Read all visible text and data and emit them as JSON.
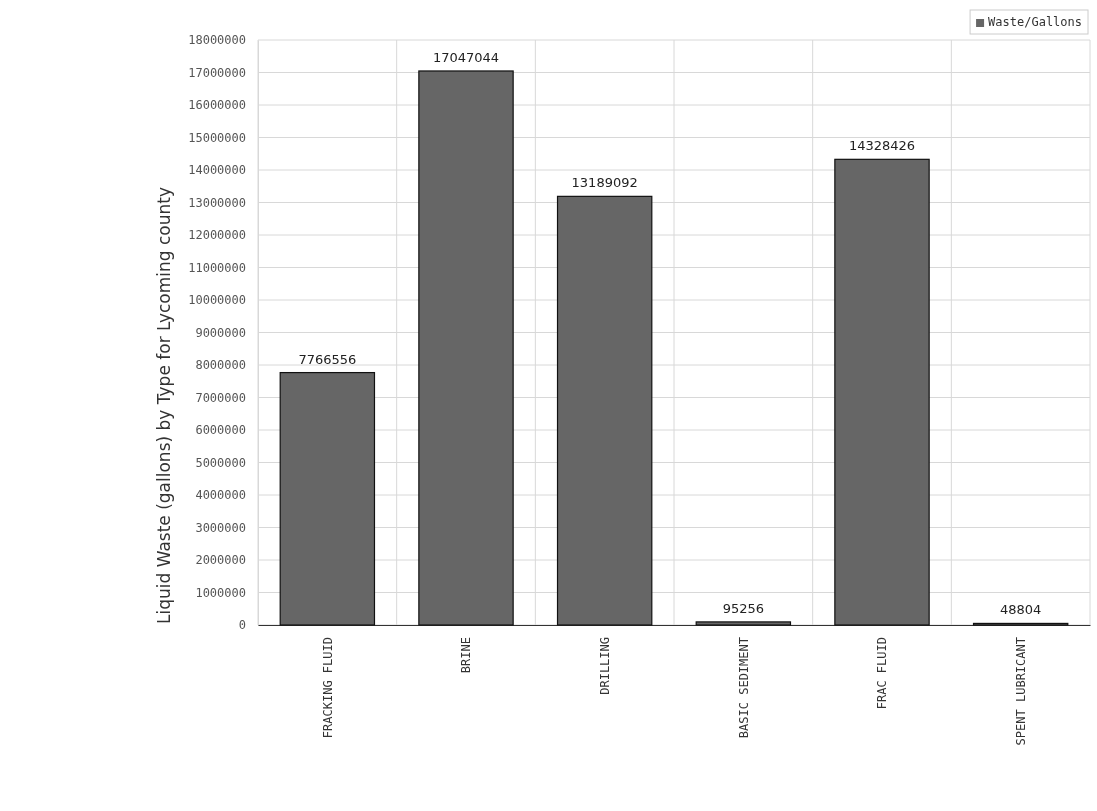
{
  "chart_data": {
    "type": "bar",
    "ylabel": "Liquid Waste (gallons) by Type for Lycoming county",
    "categories": [
      "FRACKING FLUID",
      "BRINE",
      "DRILLING",
      "BASIC SEDIMENT",
      "FRAC FLUID",
      "SPENT LUBRICANT"
    ],
    "series": [
      {
        "name": "Waste/Gallons",
        "color": "#666666",
        "values": [
          7766556,
          17047044,
          13189092,
          95256,
          14328426,
          48804
        ]
      }
    ],
    "ylim": [
      0,
      18000000
    ],
    "yticks": [
      0,
      1000000,
      2000000,
      3000000,
      4000000,
      5000000,
      6000000,
      7000000,
      8000000,
      9000000,
      10000000,
      11000000,
      12000000,
      13000000,
      14000000,
      15000000,
      16000000,
      17000000,
      18000000
    ],
    "grid": true,
    "legend": "top right",
    "data_labels": true
  }
}
